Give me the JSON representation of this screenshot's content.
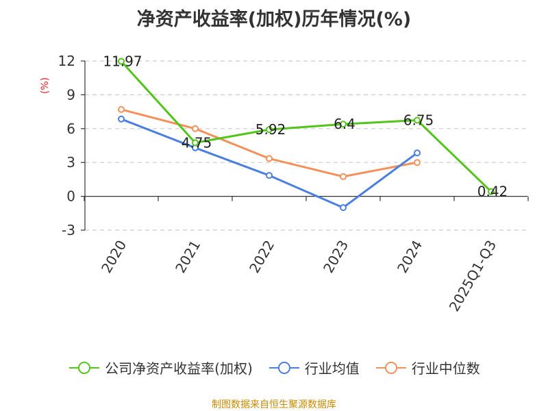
{
  "chart_data": {
    "type": "line",
    "title": "净资产收益率(加权)历年情况(%)",
    "ylabel": "(%)",
    "xlabel": "",
    "categories": [
      "2020",
      "2021",
      "2022",
      "2023",
      "2024",
      "2025Q1-Q3"
    ],
    "ylim": [
      -3,
      12
    ],
    "yticks": [
      -3,
      0,
      3,
      6,
      9,
      12
    ],
    "grid": true,
    "legend_position": "bottom",
    "series": [
      {
        "name": "公司净资产收益率(加权)",
        "color": "#52c41a",
        "values": [
          11.97,
          4.75,
          5.92,
          6.4,
          6.75,
          0.42
        ],
        "labels": [
          "11.97",
          "4.75",
          "5.92",
          "6.4",
          "6.75",
          "0.42"
        ]
      },
      {
        "name": "行业均值",
        "color": "#4a7fe0",
        "values": [
          6.85,
          4.3,
          1.85,
          -1.0,
          3.85,
          null
        ]
      },
      {
        "name": "行业中位数",
        "color": "#f5905a",
        "values": [
          7.7,
          6.0,
          3.35,
          1.75,
          3.0,
          null
        ]
      }
    ]
  },
  "source_note": "制图数据来自恒生聚源数据库"
}
